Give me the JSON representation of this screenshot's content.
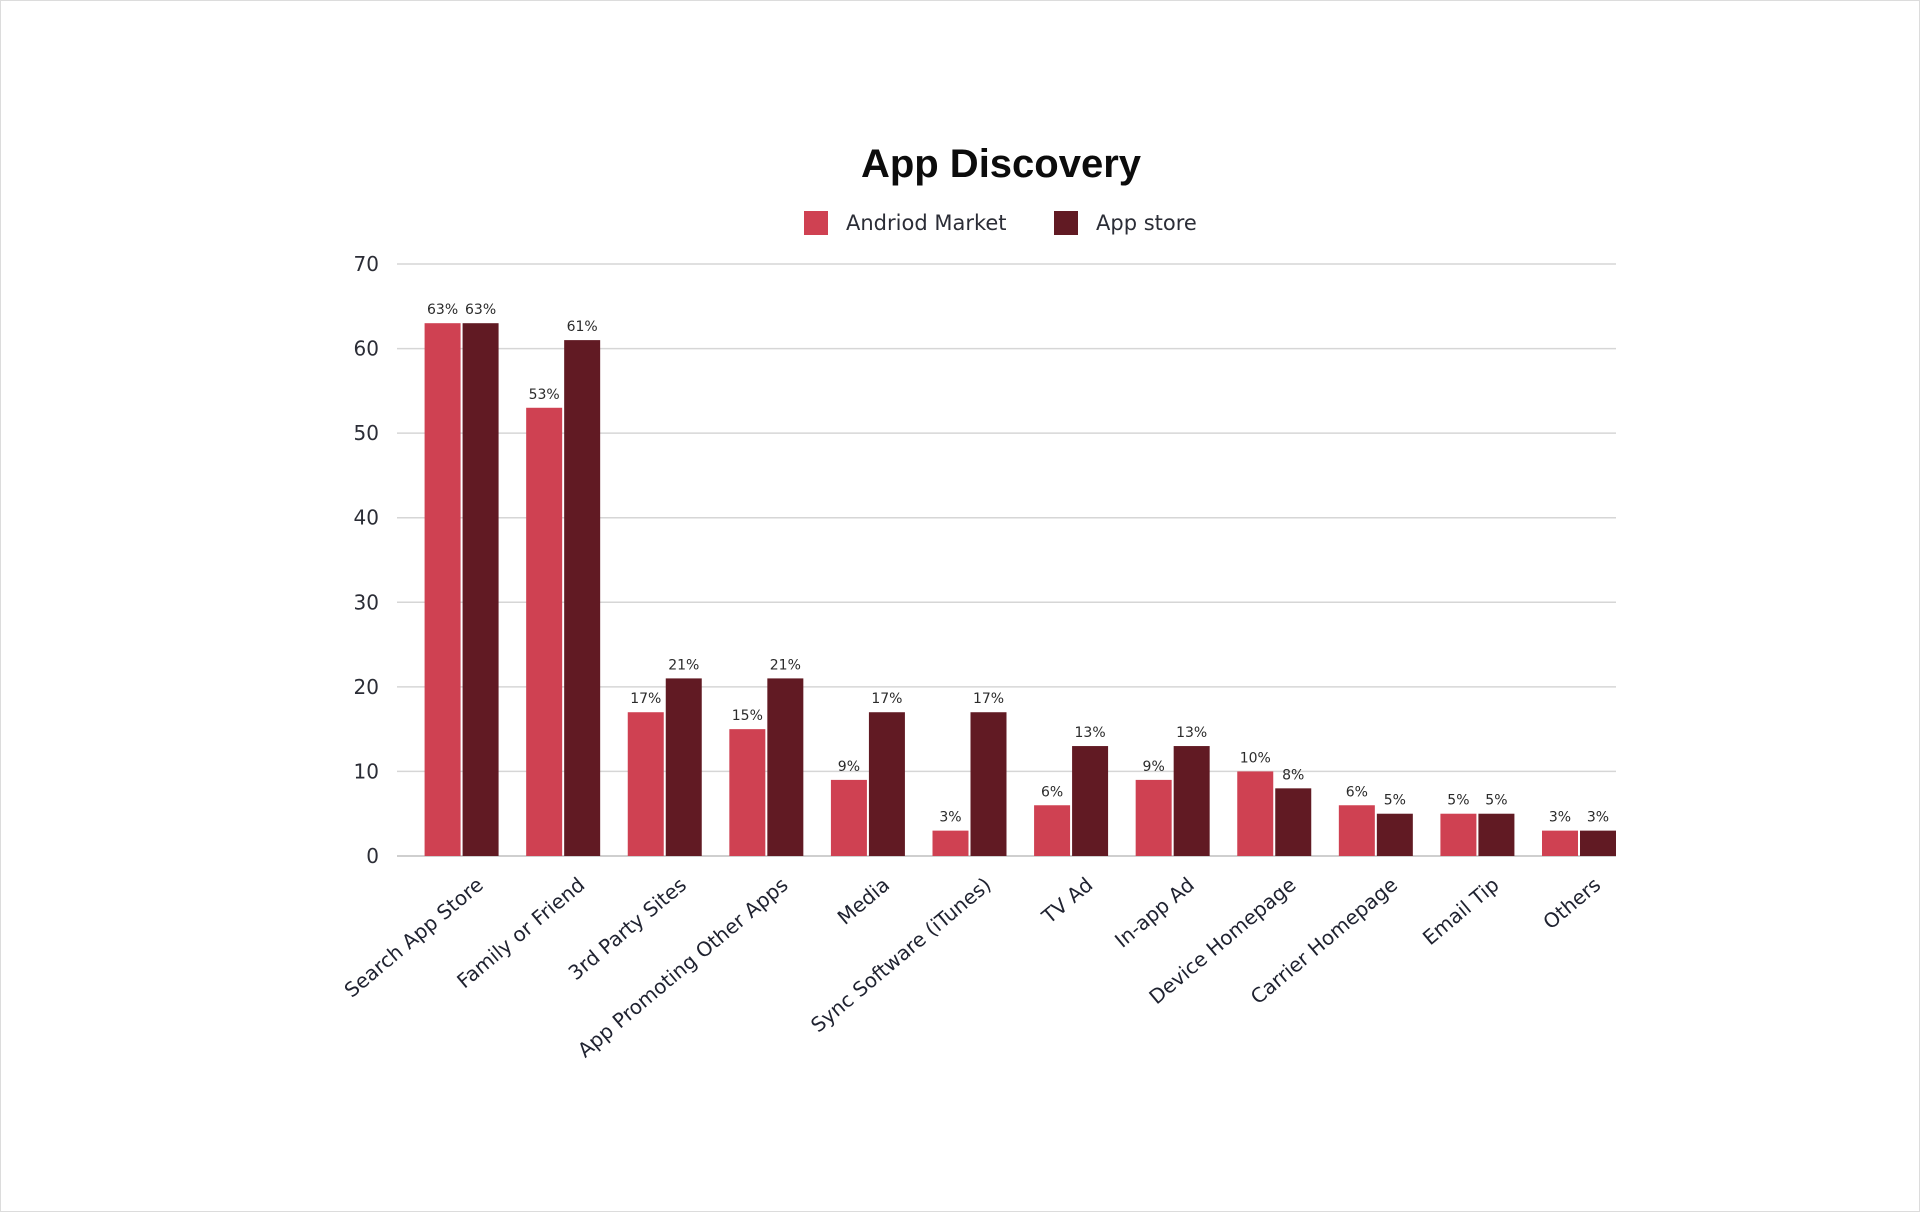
{
  "chart_data": {
    "type": "bar",
    "title": "App Discovery",
    "xlabel": "",
    "ylabel": "",
    "ylim": [
      0,
      70
    ],
    "yticks": [
      0,
      10,
      20,
      30,
      40,
      50,
      60,
      70
    ],
    "grid": true,
    "legend_position": "top-center",
    "categories": [
      "Search App Store",
      "Family or Friend",
      "3rd Party Sites",
      "App Promoting Other Apps",
      "Media",
      "Sync Software (iTunes)",
      "TV Ad",
      "In-app Ad",
      "Device Homepage",
      "Carrier Homepage",
      "Email Tip",
      "Others"
    ],
    "series": [
      {
        "name": "Andriod Market",
        "color": "#cf4152",
        "values": [
          63,
          53,
          17,
          15,
          9,
          3,
          6,
          9,
          10,
          6,
          5,
          3
        ],
        "labels": [
          "63%",
          "53%",
          "17%",
          "15%",
          "9%",
          "3%",
          "6%",
          "9%",
          "10%",
          "6%",
          "5%",
          "3%"
        ]
      },
      {
        "name": "App store",
        "color": "#611a23",
        "values": [
          63,
          61,
          21,
          21,
          17,
          17,
          13,
          13,
          8,
          5,
          5,
          3
        ],
        "labels": [
          "63%",
          "61%",
          "21%",
          "21%",
          "17%",
          "17%",
          "13%",
          "13%",
          "8%",
          "5%",
          "5%",
          "3%"
        ]
      }
    ]
  }
}
